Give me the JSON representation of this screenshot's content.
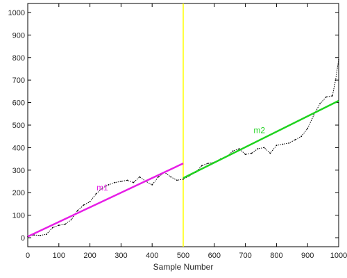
{
  "chart_data": {
    "type": "line",
    "title": "",
    "xlabel": "Sample Number",
    "ylabel": "",
    "xlim": [
      0,
      1000
    ],
    "ylim": [
      -40,
      1040
    ],
    "xticks": [
      0,
      100,
      200,
      300,
      400,
      500,
      600,
      700,
      800,
      900,
      1000
    ],
    "yticks": [
      0,
      100,
      200,
      300,
      400,
      500,
      600,
      700,
      800,
      900,
      1000
    ],
    "grid": false,
    "series": [
      {
        "style": "dotted-black",
        "color": "#000000",
        "x": [
          0,
          20,
          40,
          60,
          80,
          100,
          120,
          140,
          160,
          180,
          200,
          220,
          240,
          260,
          280,
          300,
          320,
          340,
          360,
          380,
          400,
          420,
          440,
          460,
          480,
          500,
          520,
          540,
          560,
          580,
          600,
          620,
          640,
          660,
          680,
          700,
          720,
          740,
          760,
          780,
          800,
          820,
          840,
          860,
          880,
          900,
          920,
          940,
          960,
          980,
          990,
          1000
        ],
        "y": [
          5,
          12,
          10,
          15,
          45,
          55,
          60,
          80,
          120,
          145,
          160,
          195,
          220,
          235,
          245,
          250,
          255,
          245,
          270,
          250,
          235,
          270,
          290,
          270,
          255,
          260,
          275,
          290,
          320,
          330,
          335,
          350,
          360,
          385,
          395,
          370,
          375,
          395,
          400,
          375,
          410,
          415,
          420,
          435,
          450,
          485,
          545,
          595,
          625,
          630,
          700,
          790
        ]
      },
      {
        "name": "m1",
        "type": "fit-line",
        "color": "#e61ee6",
        "x": [
          0,
          500
        ],
        "y": [
          5,
          330
        ]
      },
      {
        "name": "m2",
        "type": "fit-line",
        "color": "#1ed21e",
        "x": [
          500,
          1000
        ],
        "y": [
          265,
          608
        ]
      }
    ],
    "annotations": [
      {
        "text": "m1",
        "x": 240,
        "y": 210,
        "color": "#e61ee6"
      },
      {
        "text": "m2",
        "x": 745,
        "y": 465,
        "color": "#1ed21e"
      }
    ],
    "vlines": [
      {
        "x": 500,
        "color": "#ffff00"
      }
    ]
  }
}
